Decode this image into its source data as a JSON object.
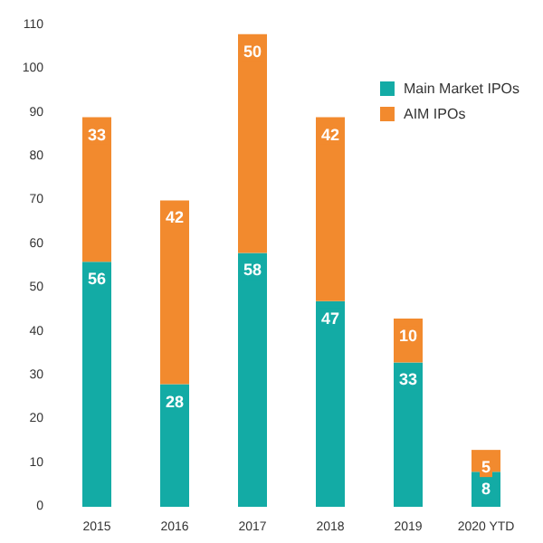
{
  "chart_data": {
    "type": "bar",
    "stacked": true,
    "categories": [
      "2015",
      "2016",
      "2017",
      "2018",
      "2019",
      "2020 YTD"
    ],
    "series": [
      {
        "name": "Main Market IPOs",
        "color": "#13aba5",
        "values": [
          56,
          28,
          58,
          47,
          33,
          8
        ]
      },
      {
        "name": "AIM IPOs",
        "color": "#f28a2e",
        "values": [
          33,
          42,
          50,
          42,
          10,
          5
        ]
      }
    ],
    "ylim": [
      0,
      110
    ],
    "yticks": [
      0,
      10,
      20,
      30,
      40,
      50,
      60,
      70,
      80,
      90,
      100,
      110
    ],
    "grid": false,
    "legend": "top right",
    "data_labels": true
  }
}
